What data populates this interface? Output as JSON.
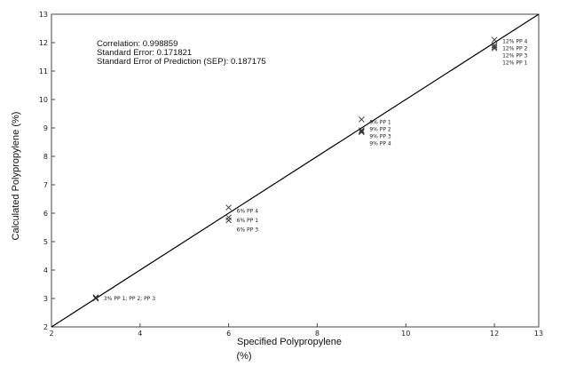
{
  "chart_data": {
    "type": "scatter",
    "title": "",
    "xlabel": "Specified Polypropylene",
    "xlabel_unit": "(%)",
    "ylabel": "Calculated Polypropylene (%)",
    "xlim": [
      2,
      13
    ],
    "ylim": [
      2,
      13
    ],
    "x_ticks": [
      "2",
      "4",
      "6",
      "8",
      "10",
      "12",
      "13"
    ],
    "y_ticks": [
      "2",
      "3",
      "4",
      "5",
      "6",
      "7",
      "8",
      "9",
      "10",
      "11",
      "12",
      "13"
    ],
    "stats": [
      "Correlation: 0.998859",
      "Standard Error: 0.171821",
      "Standard Error of Prediction (SEP): 0.187175"
    ],
    "fit_line": {
      "x": [
        2,
        13
      ],
      "y": [
        2,
        13
      ]
    },
    "points": [
      {
        "x": 3,
        "y": 3.02
      },
      {
        "x": 3,
        "y": 3.0
      },
      {
        "x": 3,
        "y": 3.04
      },
      {
        "x": 6,
        "y": 6.2
      },
      {
        "x": 6,
        "y": 5.75
      },
      {
        "x": 6,
        "y": 5.85
      },
      {
        "x": 9,
        "y": 9.3
      },
      {
        "x": 9,
        "y": 8.92
      },
      {
        "x": 9,
        "y": 8.85
      },
      {
        "x": 9,
        "y": 8.88
      },
      {
        "x": 12,
        "y": 12.1
      },
      {
        "x": 12,
        "y": 11.8
      },
      {
        "x": 12,
        "y": 11.85
      },
      {
        "x": 12,
        "y": 11.9
      }
    ],
    "point_labels": [
      {
        "text": "3% PP 1; PP 2; PP 3",
        "x": 3,
        "y": 3.0
      },
      {
        "text": "6% PP 4",
        "x": 6,
        "y": 6.08
      },
      {
        "text": "6% PP 1",
        "x": 6,
        "y": 5.75
      },
      {
        "text": "6% PP 3",
        "x": 6,
        "y": 5.42
      },
      {
        "text": "9% PP 1",
        "x": 9,
        "y": 9.2
      },
      {
        "text": "9% PP 2",
        "x": 9,
        "y": 8.95
      },
      {
        "text": "9% PP 3",
        "x": 9,
        "y": 8.7
      },
      {
        "text": "9% PP 4",
        "x": 9,
        "y": 8.45
      },
      {
        "text": "12% PP 4",
        "x": 12,
        "y": 12.05
      },
      {
        "text": "12% PP 2",
        "x": 12,
        "y": 11.8
      },
      {
        "text": "12% PP 3",
        "x": 12,
        "y": 11.55
      },
      {
        "text": "12% PP 1",
        "x": 12,
        "y": 11.3
      }
    ],
    "grid": false,
    "legend": "none",
    "colors": {
      "line": "#000000",
      "marker": "#333333",
      "text": "#111111"
    }
  }
}
